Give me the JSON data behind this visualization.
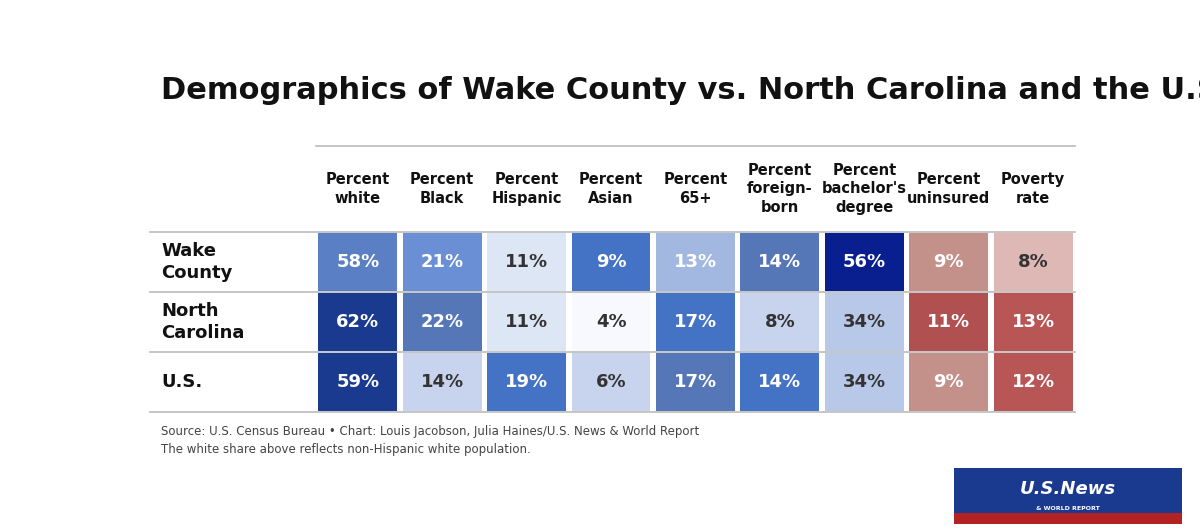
{
  "title": "Demographics of Wake County vs. North Carolina and the U.S.",
  "columns": [
    "Percent\nwhite",
    "Percent\nBlack",
    "Percent\nHispanic",
    "Percent\nAsian",
    "Percent\n65+",
    "Percent\nforeign-\nborn",
    "Percent\nbachelor's\ndegree",
    "Percent\nuninsured",
    "Poverty\nrate"
  ],
  "rows": [
    "Wake\nCounty",
    "North\nCarolina",
    "U.S."
  ],
  "values": [
    [
      58,
      21,
      11,
      9,
      13,
      14,
      56,
      9,
      8
    ],
    [
      62,
      22,
      11,
      4,
      17,
      8,
      34,
      11,
      13
    ],
    [
      59,
      14,
      19,
      6,
      17,
      14,
      34,
      9,
      12
    ]
  ],
  "cell_colors": [
    [
      "#5b7fc4",
      "#6b8fd4",
      "#dde6f5",
      "#4472c4",
      "#a3b8e0",
      "#5577b8",
      "#0a1f8f",
      "#c4908a",
      "#ddb8b4"
    ],
    [
      "#1a3a8f",
      "#5577b8",
      "#dde6f5",
      "#f8f8ff",
      "#4472c4",
      "#c8d4ee",
      "#b8c8e8",
      "#b05050",
      "#b85555"
    ],
    [
      "#1a3a8f",
      "#c8d4ee",
      "#4472c4",
      "#c8d4ee",
      "#5577b8",
      "#4472c4",
      "#b8c8e8",
      "#c4908a",
      "#b85555"
    ]
  ],
  "text_colors": [
    [
      "#ffffff",
      "#ffffff",
      "#333333",
      "#ffffff",
      "#ffffff",
      "#ffffff",
      "#ffffff",
      "#ffffff",
      "#333333"
    ],
    [
      "#ffffff",
      "#ffffff",
      "#333333",
      "#333333",
      "#ffffff",
      "#333333",
      "#333333",
      "#ffffff",
      "#ffffff"
    ],
    [
      "#ffffff",
      "#333333",
      "#ffffff",
      "#333333",
      "#ffffff",
      "#ffffff",
      "#333333",
      "#ffffff",
      "#ffffff"
    ]
  ],
  "source_text": "Source: U.S. Census Bureau • Chart: Louis Jacobson, Julia Haines/U.S. News & World Report\nThe white share above reflects non-Hispanic white population.",
  "background_color": "#ffffff",
  "title_color": "#111111",
  "title_fontsize": 22,
  "label_fontsize": 10.5,
  "cell_fontsize": 13,
  "row_label_fontsize": 13
}
